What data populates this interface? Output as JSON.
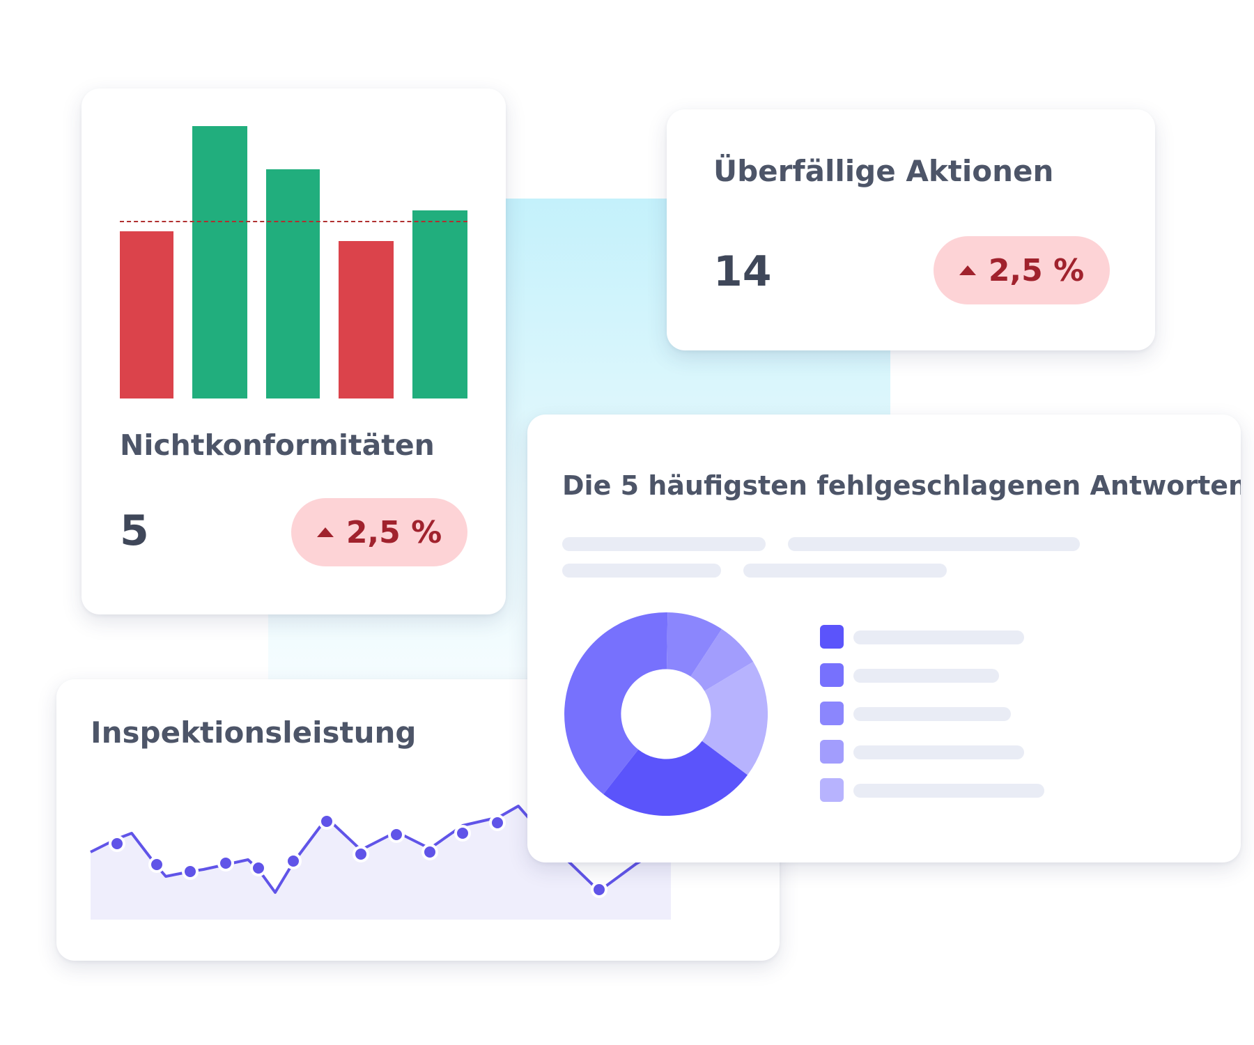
{
  "nonconformities": {
    "title": "Nichtkonformitäten",
    "value": "5",
    "change": "2,5 %",
    "change_direction": "up",
    "colors": {
      "negative": "#db434b",
      "positive": "#21ae7d",
      "threshold": "#b03030"
    }
  },
  "overdue_actions": {
    "title": "Überfällige Aktionen",
    "value": "14",
    "change": "2,5 %",
    "change_direction": "up"
  },
  "top_failed": {
    "title": "Die 5 häufigsten fehlgeschlagenen Antworten",
    "slice_colors": [
      "#5b54fb",
      "#7771fd",
      "#8b86fd",
      "#a29dfd",
      "#b7b3fe"
    ]
  },
  "inspection_performance": {
    "title": "Inspektionsleistung",
    "line_color": "#6054e8",
    "fill_color": "#efeefc"
  },
  "colors": {
    "accent": "#5b54fb",
    "badge_bg": "#fdd3d6",
    "badge_text": "#a0222d"
  }
}
